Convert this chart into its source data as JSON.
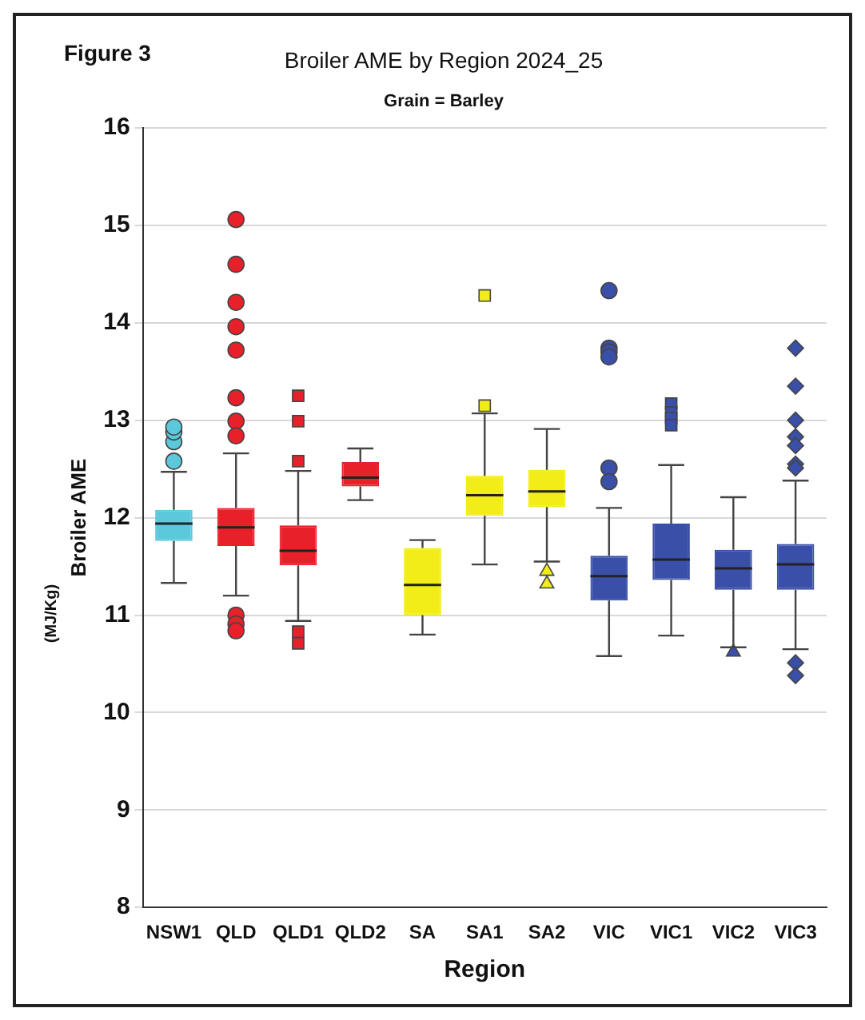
{
  "chart_data": {
    "type": "box",
    "title": "Broiler AME by Region 2024_25",
    "subtitle": "Grain = Barley",
    "xlabel": "Region",
    "ylabel": "Broiler AME",
    "annotations": [
      "Figure 3",
      "(MJ/Kg)"
    ],
    "categories": [
      "NSW1",
      "QLD",
      "QLD1",
      "QLD2",
      "SA",
      "SA1",
      "SA2",
      "VIC",
      "VIC1",
      "VIC2",
      "VIC3"
    ],
    "ylim": [
      8,
      16
    ],
    "yticks": [
      8,
      9,
      10,
      11,
      12,
      13,
      14,
      15,
      16
    ],
    "grid": "y",
    "legend": false,
    "series": [
      {
        "color": "#5bc8dc",
        "marker": "circle",
        "boxes": [
          {
            "low": 11.33,
            "q1": 11.76,
            "median": 11.94,
            "q3": 12.08,
            "high": 12.47,
            "outliers": [
              12.58,
              12.78,
              12.88,
              12.93
            ]
          },
          null,
          null,
          null,
          null,
          null,
          null,
          null,
          null,
          null,
          null
        ]
      },
      {
        "color": "#e8202a",
        "marker": "circle",
        "boxes": [
          null,
          {
            "low": 11.2,
            "q1": 11.71,
            "median": 11.9,
            "q3": 12.1,
            "high": 12.66,
            "outliers": [
              15.06,
              14.6,
              14.21,
              13.96,
              13.72,
              13.23,
              12.99,
              12.84,
              11.0,
              10.91,
              10.84
            ]
          },
          null,
          null,
          null,
          null,
          null,
          null,
          null,
          null,
          null
        ]
      },
      {
        "color": "#e8202a",
        "marker": "square",
        "boxes": [
          null,
          null,
          {
            "low": 10.94,
            "q1": 11.51,
            "median": 11.66,
            "q3": 11.92,
            "high": 12.48,
            "outliers": [
              13.25,
              12.99,
              12.58,
              10.83,
              10.71
            ]
          },
          null,
          null,
          null,
          null,
          null,
          null,
          null,
          null
        ]
      },
      {
        "color": "#e8202a",
        "marker": "none",
        "boxes": [
          null,
          null,
          null,
          {
            "low": 12.18,
            "q1": 12.32,
            "median": 12.41,
            "q3": 12.57,
            "high": 12.71
          },
          null,
          null,
          null,
          null,
          null,
          null,
          null
        ]
      },
      {
        "color": "#f2ec18",
        "marker": "none",
        "boxes": [
          null,
          null,
          null,
          null,
          {
            "low": 10.8,
            "q1": 11.0,
            "median": 11.31,
            "q3": 11.69,
            "high": 11.77
          },
          null,
          null,
          null,
          null,
          null,
          null
        ]
      },
      {
        "color": "#f2ec18",
        "marker": "square",
        "boxes": [
          null,
          null,
          null,
          null,
          null,
          {
            "low": 11.52,
            "q1": 12.02,
            "median": 12.23,
            "q3": 12.43,
            "high": 13.07,
            "outliers": [
              14.28,
              13.15
            ]
          },
          null,
          null,
          null,
          null,
          null
        ]
      },
      {
        "color": "#f2ec18",
        "marker": "triangle",
        "boxes": [
          null,
          null,
          null,
          null,
          null,
          null,
          {
            "low": 11.55,
            "q1": 12.11,
            "median": 12.27,
            "q3": 12.49,
            "high": 12.91,
            "outliers": [
              11.45,
              11.32
            ]
          },
          null,
          null,
          null,
          null
        ]
      },
      {
        "color": "#3a4fa8",
        "marker": "circle",
        "boxes": [
          null,
          null,
          null,
          null,
          null,
          null,
          null,
          {
            "low": 10.58,
            "q1": 11.15,
            "median": 11.4,
            "q3": 11.61,
            "high": 12.1,
            "outliers": [
              14.33,
              13.74,
              13.7,
              13.65,
              12.51,
              12.37
            ]
          },
          null,
          null,
          null
        ]
      },
      {
        "color": "#3a4fa8",
        "marker": "square",
        "boxes": [
          null,
          null,
          null,
          null,
          null,
          null,
          null,
          null,
          {
            "low": 10.79,
            "q1": 11.36,
            "median": 11.57,
            "q3": 11.94,
            "high": 12.54,
            "outliers": [
              13.17,
              13.08,
              13.02,
              12.95
            ]
          },
          null,
          null
        ]
      },
      {
        "color": "#3a4fa8",
        "marker": "triangle",
        "boxes": [
          null,
          null,
          null,
          null,
          null,
          null,
          null,
          null,
          null,
          {
            "low": 10.67,
            "q1": 11.26,
            "median": 11.48,
            "q3": 11.67,
            "high": 12.21,
            "outliers": [
              10.62
            ]
          },
          null
        ]
      },
      {
        "color": "#3a4fa8",
        "marker": "diamond",
        "boxes": [
          null,
          null,
          null,
          null,
          null,
          null,
          null,
          null,
          null,
          null,
          {
            "low": 10.65,
            "q1": 11.26,
            "median": 11.52,
            "q3": 11.73,
            "high": 12.38,
            "outliers": [
              13.74,
              13.35,
              13.0,
              12.83,
              12.74,
              12.55,
              12.51,
              10.51,
              10.38
            ]
          }
        ]
      }
    ]
  }
}
